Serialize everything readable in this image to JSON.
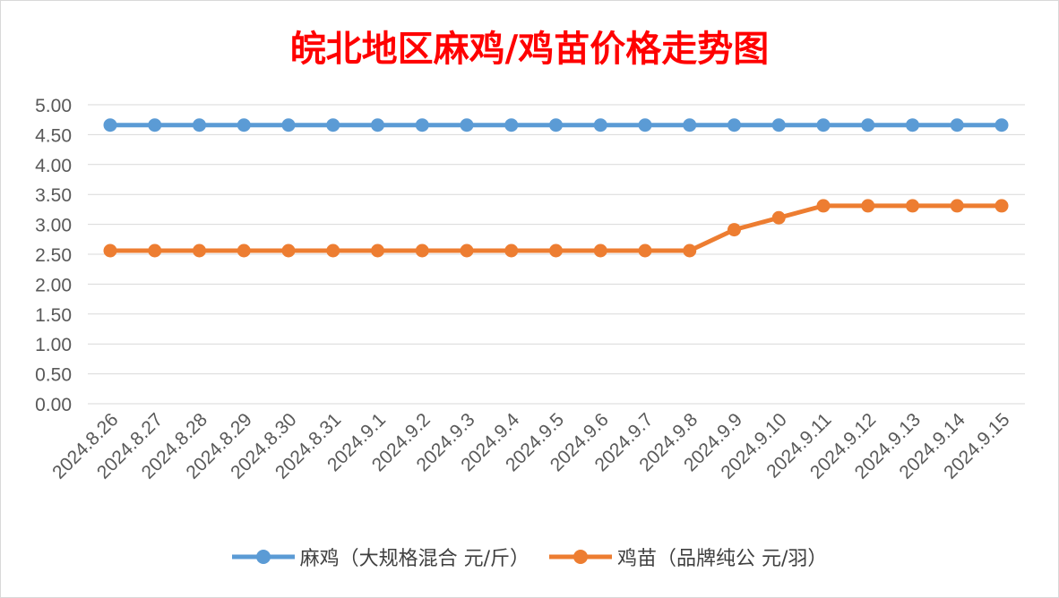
{
  "chart_data": {
    "type": "line",
    "title": "皖北地区麻鸡/鸡苗价格走势图",
    "categories": [
      "2024.8.26",
      "2024.8.27",
      "2024.8.28",
      "2024.8.29",
      "2024.8.30",
      "2024.8.31",
      "2024.9.1",
      "2024.9.2",
      "2024.9.3",
      "2024.9.4",
      "2024.9.5",
      "2024.9.6",
      "2024.9.7",
      "2024.9.8",
      "2024.9.9",
      "2024.9.10",
      "2024.9.11",
      "2024.9.12",
      "2024.9.13",
      "2024.9.14",
      "2024.9.15"
    ],
    "series": [
      {
        "name": "麻鸡（大规格混合 元/斤）",
        "color": "#5b9bd5",
        "values": [
          4.66,
          4.66,
          4.66,
          4.66,
          4.66,
          4.66,
          4.66,
          4.66,
          4.66,
          4.66,
          4.66,
          4.66,
          4.66,
          4.66,
          4.66,
          4.66,
          4.66,
          4.66,
          4.66,
          4.66,
          4.66
        ]
      },
      {
        "name": "鸡苗（品牌纯公 元/羽）",
        "color": "#ed7d31",
        "values": [
          2.56,
          2.56,
          2.56,
          2.56,
          2.56,
          2.56,
          2.56,
          2.56,
          2.56,
          2.56,
          2.56,
          2.56,
          2.56,
          2.56,
          2.91,
          3.11,
          3.31,
          3.31,
          3.31,
          3.31,
          3.31
        ]
      }
    ],
    "yticks": [
      "0.00",
      "0.50",
      "1.00",
      "1.50",
      "2.00",
      "2.50",
      "3.00",
      "3.50",
      "4.00",
      "4.50",
      "5.00"
    ],
    "ylim": [
      0,
      5
    ],
    "grid": true,
    "legend": "bottom"
  }
}
